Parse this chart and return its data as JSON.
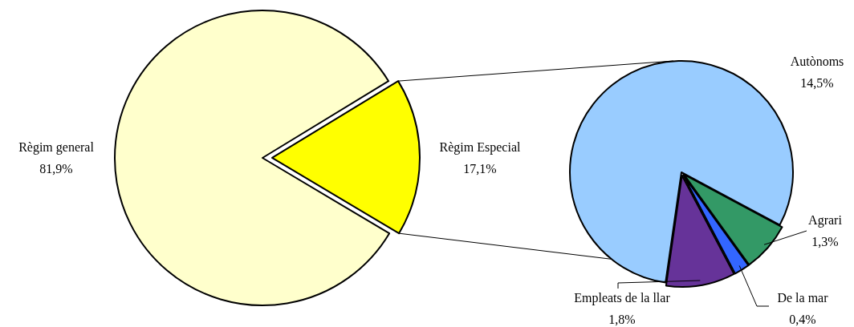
{
  "chart_data": [
    {
      "type": "pie",
      "categories": [
        "Règim general",
        "Règim Especial"
      ],
      "values": [
        81.9,
        17.1
      ],
      "value_labels": [
        "81,9%",
        "17,1%"
      ],
      "colors": [
        "#ffffcc",
        "#ffff00"
      ]
    },
    {
      "type": "pie",
      "categories": [
        "Autònoms",
        "Agrari",
        "De la mar",
        "Empleats de la llar"
      ],
      "values": [
        14.5,
        1.3,
        0.4,
        1.8
      ],
      "value_labels": [
        "14,5%",
        "1,3%",
        "0,4%",
        "1,8%"
      ],
      "colors": [
        "#99ccff",
        "#339966",
        "#3366ff",
        "#663399"
      ]
    }
  ]
}
